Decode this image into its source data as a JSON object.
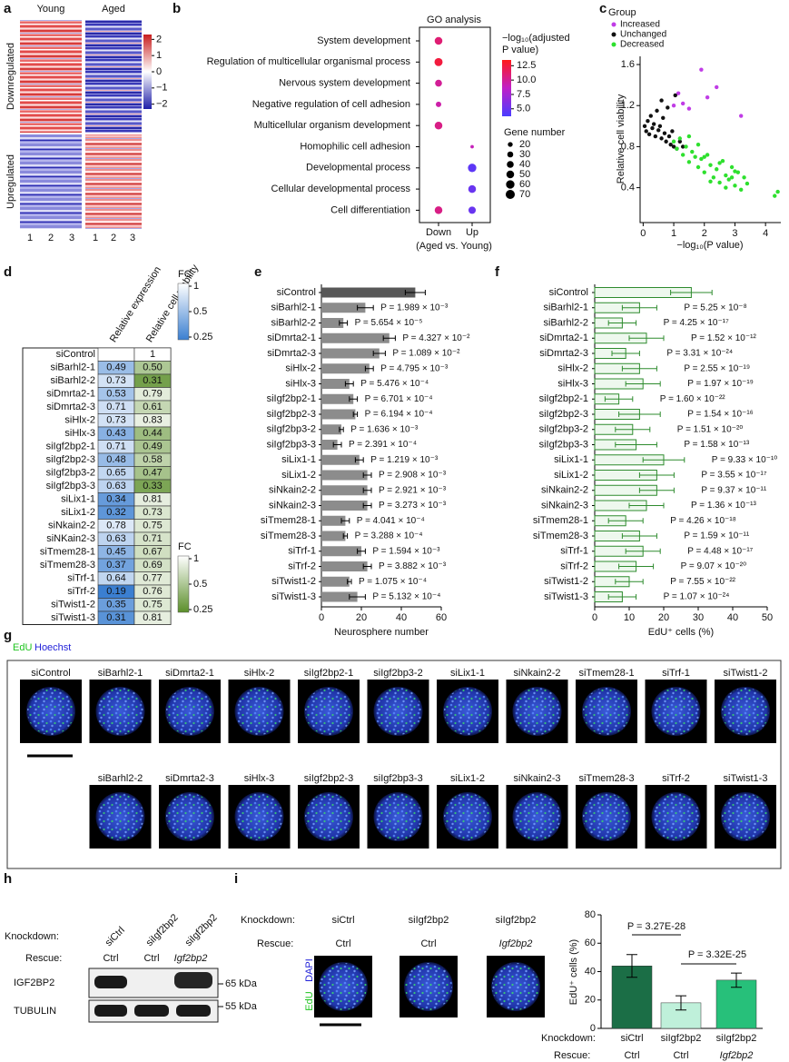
{
  "panel_labels": [
    "a",
    "b",
    "c",
    "d",
    "e",
    "f",
    "g",
    "h",
    "i"
  ],
  "heatmap": {
    "columns": [
      "Young",
      "Aged"
    ],
    "rows": [
      "Downregulated",
      "Upregulated"
    ],
    "samples": [
      "1",
      "2",
      "3",
      "1",
      "2",
      "3"
    ],
    "colorbar_lim": [
      -2.3,
      2.3
    ],
    "colorbar_ticks": [
      2,
      1,
      0,
      {
        "value": -1,
        "label": "−1"
      },
      {
        "value": -2,
        "label": "−2"
      }
    ]
  },
  "chart_data": [
    {
      "type": "dot",
      "title": "GO analysis",
      "xlabel": "(Aged vs. Young)",
      "categories": [
        "System development",
        "Regulation of multicellular organismal process",
        "Nervous system development",
        "Negative regulation of cell adhesion",
        "Multicellular organism development",
        "Homophilic cell adhesion",
        "Developmental process",
        "Cellular developmental process",
        "Cell differentiation"
      ],
      "series": [
        {
          "name": "Down",
          "values": [
            11,
            12.5,
            10,
            9.5,
            10.5,
            null,
            null,
            null,
            10.5
          ],
          "sizes": [
            50,
            55,
            40,
            25,
            50,
            null,
            null,
            null,
            50
          ]
        },
        {
          "name": "Up",
          "values": [
            null,
            null,
            null,
            null,
            null,
            9,
            4.5,
            5,
            5
          ],
          "sizes": [
            null,
            null,
            null,
            null,
            null,
            10,
            60,
            50,
            45
          ]
        }
      ],
      "colorbar": {
        "title": [
          "−log₁₀(adjusted",
          "P value)"
        ],
        "lim": [
          3.7,
          13.5
        ],
        "colors": [
          "#4a3cff",
          "#c020c8",
          "#ff1a1a"
        ],
        "ticks": [
          12.5,
          {
            "value": 10,
            "label": "10.0"
          },
          7.5,
          {
            "value": 5,
            "label": "5.0"
          }
        ]
      },
      "size_legend": {
        "title": "Gene number",
        "values": [
          20,
          30,
          40,
          50,
          60,
          70
        ]
      }
    },
    {
      "type": "scatter",
      "legend_title": "Group",
      "xlabel": "−log₁₀(P value)",
      "ylabel": "Relative cell viability",
      "xlim": [
        -0.1,
        4.5
      ],
      "ylim": [
        0.06,
        1.68
      ],
      "xticks": [
        0,
        1,
        2,
        3,
        4
      ],
      "yticks": [
        0.4,
        0.8,
        1.2,
        1.6
      ],
      "series": [
        {
          "name": "Increased",
          "color": "#c03ce6",
          "x": [
            1.0,
            1.15,
            1.3,
            1.5,
            1.9,
            2.1,
            2.4,
            3.2
          ],
          "values": [
            1.2,
            1.32,
            1.22,
            1.17,
            1.55,
            1.28,
            1.38,
            1.1
          ]
        },
        {
          "name": "Unchanged",
          "color": "#111111",
          "x": [
            0.05,
            0.1,
            0.15,
            0.2,
            0.25,
            0.3,
            0.35,
            0.4,
            0.45,
            0.5,
            0.55,
            0.6,
            0.65,
            0.7,
            0.75,
            0.8,
            0.85,
            0.9,
            0.95,
            1.0,
            1.05,
            1.1,
            1.2,
            1.3,
            0.6
          ],
          "values": [
            1.0,
            0.95,
            1.05,
            0.92,
            1.1,
            0.98,
            1.02,
            0.9,
            1.15,
            0.96,
            1.0,
            0.88,
            1.08,
            0.93,
            0.85,
            1.18,
            0.9,
            0.82,
            0.95,
            0.8,
            1.3,
            0.78,
            0.85,
            0.8,
            1.25
          ]
        },
        {
          "name": "Decreased",
          "color": "#2ee02e",
          "x": [
            1.0,
            1.1,
            1.2,
            1.3,
            1.4,
            1.5,
            1.6,
            1.7,
            1.8,
            1.9,
            2.0,
            2.1,
            2.2,
            2.3,
            2.4,
            2.5,
            2.6,
            2.7,
            2.8,
            2.9,
            3.0,
            3.1,
            3.2,
            3.3,
            1.5,
            1.8,
            2.0,
            2.2,
            2.5,
            2.7,
            3.0,
            3.4,
            4.3,
            4.4,
            2.9
          ],
          "values": [
            0.85,
            0.78,
            0.88,
            0.72,
            0.8,
            0.65,
            0.75,
            0.7,
            0.6,
            0.68,
            0.55,
            0.72,
            0.62,
            0.5,
            0.58,
            0.45,
            0.66,
            0.52,
            0.48,
            0.6,
            0.42,
            0.55,
            0.38,
            0.5,
            0.9,
            0.82,
            0.7,
            0.46,
            0.64,
            0.4,
            0.56,
            0.44,
            0.32,
            0.36,
            0.5
          ]
        }
      ]
    },
    {
      "type": "bar",
      "orientation": "horizontal",
      "xlabel": "Neurosphere number",
      "xlim": [
        0,
        60
      ],
      "xticks": [
        0,
        20,
        40,
        60
      ],
      "color": "#8c8c8c",
      "control_color": "#585858",
      "categories": [
        "siControl",
        "siBarhl2-1",
        "siBarhl2-2",
        "siDmrta2-1",
        "siDmrta2-3",
        "siHlx-2",
        "siHlx-3",
        "siIgf2bp2-1",
        "siIgf2bp2-3",
        "siIgf2bp3-2",
        "siIgf2bp3-3",
        "siLix1-1",
        "siLix1-2",
        "siNkain2-2",
        "siNkain2-3",
        "siTmem28-1",
        "siTmem28-3",
        "siTrf-1",
        "siTrf-2",
        "siTwist1-2",
        "siTwist1-3"
      ],
      "values": [
        47,
        22,
        11,
        34,
        29,
        24,
        14,
        16,
        17,
        10,
        8,
        19,
        23,
        23,
        23,
        12,
        12,
        20,
        23,
        14,
        18
      ],
      "errors": [
        5,
        4,
        2,
        3,
        3,
        2,
        2,
        2,
        1,
        1,
        2,
        2,
        2,
        2,
        2,
        2,
        1,
        2,
        2,
        1,
        4
      ],
      "annotations": [
        null,
        "P = 1.989 × 10⁻³",
        "P = 5.654 × 10⁻⁵",
        "P = 4.327 × 10⁻²",
        "P = 1.089 × 10⁻²",
        "P = 4.795 × 10⁻³",
        "P = 5.476 × 10⁻⁴",
        "P = 6.701 × 10⁻⁴",
        "P = 6.194 × 10⁻⁴",
        "P = 1.636 × 10⁻³",
        "P = 2.391 × 10⁻⁴",
        "P = 1.219 × 10⁻³",
        "P = 2.908 × 10⁻³",
        "P = 2.921 × 10⁻³",
        "P = 3.273 × 10⁻³",
        "P = 4.041 × 10⁻⁴",
        "P = 3.288 × 10⁻⁴",
        "P = 1.594 × 10⁻³",
        "P = 3.882 × 10⁻³",
        "P = 1.075 × 10⁻⁴",
        "P = 5.132 × 10⁻⁴"
      ]
    },
    {
      "type": "bar",
      "orientation": "horizontal",
      "xlabel": "EdU⁺ cells (%)",
      "xlim": [
        0,
        50
      ],
      "xticks": [
        0,
        10,
        20,
        30,
        40,
        50
      ],
      "color": "#2e8b2e",
      "fill": "#eef8ee",
      "categories": [
        "siControl",
        "siBarhl2-1",
        "siBarhl2-2",
        "siDmrta2-1",
        "siDmrta2-3",
        "siHlx-2",
        "siHlx-3",
        "siIgf2bp2-1",
        "siIgf2bp2-3",
        "siIgf2bp3-2",
        "siIgf2bp3-3",
        "siLix1-1",
        "siLix1-2",
        "siNkain2-2",
        "siNkain2-3",
        "siTmem28-1",
        "siTmem28-3",
        "siTrf-1",
        "siTrf-2",
        "siTwist1-2",
        "siTwist1-3"
      ],
      "values": [
        28,
        13,
        8,
        15,
        9,
        13,
        14,
        7,
        13,
        11,
        12,
        20,
        18,
        18,
        15,
        9,
        13,
        14,
        12,
        10,
        8
      ],
      "errors": [
        6,
        5,
        4,
        5,
        4,
        5,
        5,
        4,
        6,
        5,
        6,
        6,
        5,
        5,
        5,
        5,
        5,
        5,
        5,
        4,
        4
      ],
      "annotations": [
        null,
        "P = 5.25 × 10⁻⁸",
        "P = 4.25 × 10⁻¹⁷",
        "P = 1.52 × 10⁻¹²",
        "P = 3.31 × 10⁻²⁴",
        "P = 2.55 × 10⁻¹⁹",
        "P = 1.97 × 10⁻¹⁹",
        "P = 1.60 × 10⁻²²",
        "P = 1.54 × 10⁻¹⁶",
        "P = 1.51 × 10⁻²⁰",
        "P = 1.58 × 10⁻¹³",
        "P = 9.33 × 10⁻¹⁰",
        "P = 3.55 × 10⁻¹⁷",
        "P = 9.37 × 10⁻¹¹",
        "P = 1.36 × 10⁻¹³",
        "P = 4.26 × 10⁻¹⁸",
        "P = 1.59 × 10⁻¹¹",
        "P = 4.48 × 10⁻¹⁷",
        "P = 9.07 × 10⁻²⁰",
        "P = 7.55 × 10⁻²²",
        "P = 1.07 × 10⁻²⁴"
      ]
    },
    {
      "type": "bar",
      "orientation": "vertical",
      "ylabel": "EdU⁺ cells (%)",
      "ylim": [
        0,
        80
      ],
      "yticks": [
        0,
        20,
        40,
        60,
        80
      ],
      "category_titles": [
        "Knockdown:",
        "Rescue:"
      ],
      "categories": [
        "siCtrl",
        "siIgf2bp2",
        "siIgf2bp2"
      ],
      "rescue": [
        "Ctrl",
        "Ctrl",
        "Igf2bp2"
      ],
      "values": [
        44,
        18,
        34
      ],
      "errors": [
        8,
        5,
        5
      ],
      "colors": [
        "#1b6e46",
        "#bff0da",
        "#27c07a"
      ],
      "annotations": [
        "P = 3.27E-28",
        "P = 3.32E-25"
      ]
    }
  ],
  "table": {
    "columns": [
      "Relative expression",
      "Relative cell viability"
    ],
    "rows": [
      [
        "siControl",
        null,
        "1"
      ],
      [
        "siBarhl2-1",
        "0.49",
        "0.50"
      ],
      [
        "siBarhl2-2",
        "0.73",
        "0.31"
      ],
      [
        "siDmrta2-1",
        "0.53",
        "0.79"
      ],
      [
        "siDmrta2-3",
        "0.71",
        "0.61"
      ],
      [
        "siHlx-2",
        "0.73",
        "0.83"
      ],
      [
        "siHlx-3",
        "0.43",
        "0.44"
      ],
      [
        "siIgf2bp2-1",
        "0.71",
        "0.49"
      ],
      [
        "siIgf2bp2-3",
        "0.48",
        "0.58"
      ],
      [
        "siIgf2bp3-2",
        "0.65",
        "0.47"
      ],
      [
        "siIgf2bp3-3",
        "0.63",
        "0.33"
      ],
      [
        "siLix1-1",
        "0.34",
        "0.81"
      ],
      [
        "siLix1-2",
        "0.32",
        "0.73"
      ],
      [
        "siNkain2-2",
        "0.78",
        "0.75"
      ],
      [
        "siNKain2-3",
        "0.63",
        "0.71"
      ],
      [
        "siTmem28-1",
        "0.45",
        "0.67"
      ],
      [
        "siTmem28-3",
        "0.37",
        "0.69"
      ],
      [
        "siTrf-1",
        "0.64",
        "0.77"
      ],
      [
        "siTrf-2",
        "0.19",
        "0.76"
      ],
      [
        "siTwist1-2",
        "0.35",
        "0.75"
      ],
      [
        "siTwist1-3",
        "0.31",
        "0.81"
      ]
    ],
    "legends": [
      {
        "title": "FC",
        "log": true,
        "ticks": [
          1,
          0.5,
          0.25
        ],
        "colors": [
          "#ffffff",
          "#3b7fd1"
        ]
      },
      {
        "title": "FC",
        "log": true,
        "ticks": [
          1,
          0.5,
          0.25
        ],
        "colors": [
          "#ffffff",
          "#5b8f2a"
        ]
      }
    ]
  },
  "images": {
    "legend": [
      "EdU",
      "Hoechst"
    ],
    "top_row": [
      "siControl",
      "siBarhl2-1",
      "siDmrta2-1",
      "siHlx-2",
      "siIgf2bp2-1",
      "siIgf2bp3-2",
      "siLix1-1",
      "siNkain2-2",
      "siTmem28-1",
      "siTrf-1",
      "siTwist1-2"
    ],
    "bottom_row": [
      "siBarhl2-2",
      "siDmrta2-3",
      "siHlx-3",
      "siIgf2bp2-3",
      "siIgf2bp3-3",
      "siLix1-2",
      "siNkain2-3",
      "siTmem28-3",
      "siTrf-2",
      "siTwist1-3"
    ]
  },
  "blot": {
    "knockdown_label": "Knockdown:",
    "rescue_label": "Rescue:",
    "lanes": [
      "siCtrl",
      "siIgf2bp2",
      "siIgf2bp2"
    ],
    "rescue": [
      "Ctrl",
      "Ctrl",
      "Igf2bp2"
    ],
    "proteins": [
      "IGF2BP2",
      "TUBULIN"
    ],
    "markers": [
      "65 kDa",
      "55 kDa"
    ]
  },
  "rescue_images": {
    "knockdown_label": "Knockdown:",
    "rescue_label": "Rescue:",
    "knockdown": [
      "siCtrl",
      "siIgf2bp2",
      "siIgf2bp2"
    ],
    "rescue": [
      "Ctrl",
      "Ctrl",
      "Igf2bp2"
    ],
    "channels": [
      "DAPI",
      "EdU"
    ]
  }
}
